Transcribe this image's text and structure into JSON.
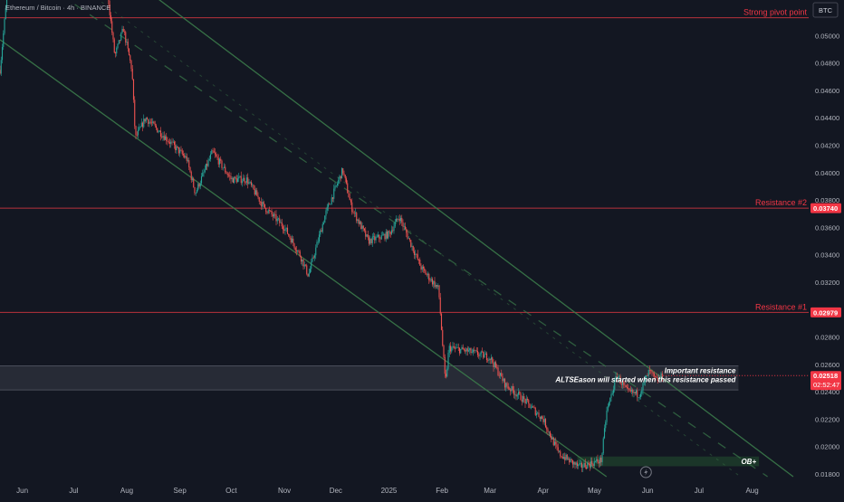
{
  "header": {
    "symbol_text": "Ethereum / Bitcoin · 4h · BINANCE"
  },
  "currency_badge": "BTC",
  "colors": {
    "background": "#131722",
    "candle_up": "#26a69a",
    "candle_down": "#ef5350",
    "channel": "#3b7a4a",
    "resistance_line": "#b8323c",
    "axis_text": "#b2b5be",
    "label_red_bg": "#f23645",
    "zone_fill": "#2a2e39"
  },
  "chart_data": {
    "type": "candlestick",
    "y_range": [
      0.0176,
      0.0526
    ],
    "x_range": [
      "2024-05-19",
      "2025-09-03"
    ],
    "x_ticks": [
      "Jun",
      "Jul",
      "Aug",
      "Sep",
      "Oct",
      "Nov",
      "Dec",
      "2025",
      "Feb",
      "Mar",
      "Apr",
      "May",
      "Jun",
      "Jul",
      "Aug"
    ],
    "x_tick_dates": [
      "2024-06-01",
      "2024-07-01",
      "2024-08-01",
      "2024-09-01",
      "2024-10-01",
      "2024-11-01",
      "2024-12-01",
      "2025-01-01",
      "2025-02-01",
      "2025-03-01",
      "2025-04-01",
      "2025-05-01",
      "2025-06-01",
      "2025-07-01",
      "2025-08-01"
    ],
    "y_ticks": [
      "0.05000",
      "0.04800",
      "0.04600",
      "0.04400",
      "0.04200",
      "0.04000",
      "0.03800",
      "0.03600",
      "0.03400",
      "0.03200",
      "0.02800",
      "0.02600",
      "0.02400",
      "0.02200",
      "0.02000",
      "0.01800"
    ],
    "price_path": [
      {
        "date": "2024-05-19",
        "price": 0.0475
      },
      {
        "date": "2024-05-25",
        "price": 0.0555
      },
      {
        "date": "2024-06-15",
        "price": 0.056
      },
      {
        "date": "2024-07-01",
        "price": 0.055
      },
      {
        "date": "2024-07-20",
        "price": 0.054
      },
      {
        "date": "2024-07-25",
        "price": 0.0485
      },
      {
        "date": "2024-07-30",
        "price": 0.0505
      },
      {
        "date": "2024-08-04",
        "price": 0.0475
      },
      {
        "date": "2024-08-06",
        "price": 0.0425
      },
      {
        "date": "2024-08-12",
        "price": 0.044
      },
      {
        "date": "2024-08-20",
        "price": 0.043
      },
      {
        "date": "2024-09-05",
        "price": 0.041
      },
      {
        "date": "2024-09-10",
        "price": 0.0385
      },
      {
        "date": "2024-09-20",
        "price": 0.0415
      },
      {
        "date": "2024-10-01",
        "price": 0.0395
      },
      {
        "date": "2024-10-10",
        "price": 0.0395
      },
      {
        "date": "2024-10-20",
        "price": 0.0375
      },
      {
        "date": "2024-11-01",
        "price": 0.036
      },
      {
        "date": "2024-11-10",
        "price": 0.034
      },
      {
        "date": "2024-11-15",
        "price": 0.0325
      },
      {
        "date": "2024-11-25",
        "price": 0.037
      },
      {
        "date": "2024-12-05",
        "price": 0.0402
      },
      {
        "date": "2024-12-10",
        "price": 0.0375
      },
      {
        "date": "2024-12-20",
        "price": 0.035
      },
      {
        "date": "2025-01-01",
        "price": 0.0355
      },
      {
        "date": "2025-01-07",
        "price": 0.0368
      },
      {
        "date": "2025-01-20",
        "price": 0.033
      },
      {
        "date": "2025-01-30",
        "price": 0.0315
      },
      {
        "date": "2025-02-03",
        "price": 0.0245
      },
      {
        "date": "2025-02-05",
        "price": 0.0272
      },
      {
        "date": "2025-02-15",
        "price": 0.027
      },
      {
        "date": "2025-03-01",
        "price": 0.0265
      },
      {
        "date": "2025-03-10",
        "price": 0.0245
      },
      {
        "date": "2025-03-20",
        "price": 0.0235
      },
      {
        "date": "2025-04-01",
        "price": 0.022
      },
      {
        "date": "2025-04-10",
        "price": 0.0195
      },
      {
        "date": "2025-04-22",
        "price": 0.0185
      },
      {
        "date": "2025-05-05",
        "price": 0.019
      },
      {
        "date": "2025-05-08",
        "price": 0.0225
      },
      {
        "date": "2025-05-14",
        "price": 0.0252
      },
      {
        "date": "2025-05-20",
        "price": 0.024
      },
      {
        "date": "2025-05-27",
        "price": 0.0238
      },
      {
        "date": "2025-06-02",
        "price": 0.0255
      },
      {
        "date": "2025-06-06",
        "price": 0.0248
      },
      {
        "date": "2025-06-10",
        "price": 0.0252
      }
    ],
    "channel": {
      "upper": [
        [
          "2024-07-15",
          0.056
        ],
        [
          "2025-08-25",
          0.0178
        ]
      ],
      "lower": [
        [
          "2024-05-19",
          0.0497
        ],
        [
          "2025-05-08",
          0.0178
        ]
      ],
      "mid": [
        [
          "2024-05-19",
          0.056
        ],
        [
          "2025-08-10",
          0.0178
        ]
      ]
    },
    "levels": [
      {
        "name": "Strong pivot point",
        "price": 0.0513
      },
      {
        "name": "Resistance #2",
        "price": 0.0374,
        "value_label": "0.03740"
      },
      {
        "name": "Resistance #1",
        "price": 0.02979,
        "value_label": "0.02979"
      }
    ],
    "resistance_zone": {
      "price_top": 0.02589,
      "price_bottom": 0.02413,
      "start": "2024-05-19",
      "end": "2025-07-24",
      "annotation_line1": "Important resistance",
      "annotation_line2": "ALTSEason will started when this resistance passed"
    },
    "demand_zone": {
      "label": "OB+",
      "price_top": 0.01927,
      "price_bottom": 0.01856,
      "start": "2025-04-21",
      "end": "2025-08-05"
    },
    "current_price": {
      "value_label": "0.02518",
      "countdown": "02:52:47",
      "price": 0.02518
    }
  }
}
